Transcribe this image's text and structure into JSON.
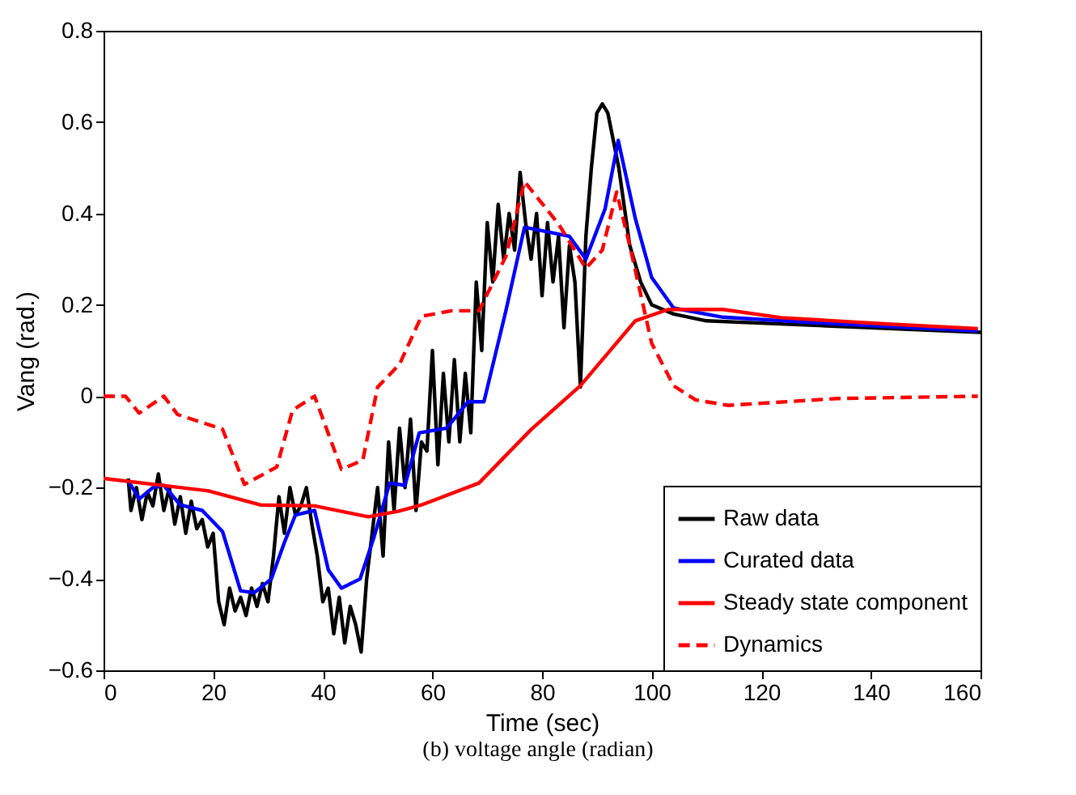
{
  "chart_data": {
    "type": "line",
    "xlabel": "Time (sec)",
    "ylabel": "Vang (rad.)",
    "xlim": [
      0,
      160
    ],
    "ylim": [
      -0.6,
      0.8
    ],
    "xticks": [
      0,
      20,
      40,
      60,
      80,
      100,
      120,
      140,
      160
    ],
    "yticks": [
      -0.6,
      -0.4,
      -0.2,
      0,
      0.2,
      0.4,
      0.6,
      0.8
    ],
    "grid": false,
    "legend": "bottom right",
    "annotations": [
      "(b) voltage angle (radian)"
    ],
    "series": [
      {
        "name": "Raw data",
        "color": "#000000",
        "line_style": "solid",
        "x": [
          4.5,
          5,
          6,
          7,
          8,
          9,
          10,
          11,
          12,
          13,
          14,
          15,
          16,
          17,
          18,
          19,
          20,
          21,
          22,
          23,
          24,
          25,
          26,
          27,
          28,
          29,
          30,
          31,
          32,
          33,
          34,
          35,
          36,
          37,
          38,
          39,
          40,
          41,
          42,
          43,
          44,
          45,
          46,
          47,
          48,
          49,
          50,
          51,
          52,
          53,
          54,
          55,
          56,
          57,
          58,
          59,
          60,
          61,
          62,
          63,
          64,
          65,
          66,
          67,
          68,
          69,
          70,
          71,
          72,
          73,
          74,
          75,
          76,
          77,
          78,
          79,
          80,
          81,
          82,
          83,
          84,
          85,
          86,
          87,
          88,
          89,
          90,
          91,
          92,
          94,
          96,
          98,
          100,
          104,
          110,
          120,
          160
        ],
        "values": [
          -0.18,
          -0.25,
          -0.2,
          -0.27,
          -0.21,
          -0.24,
          -0.17,
          -0.25,
          -0.2,
          -0.28,
          -0.22,
          -0.3,
          -0.23,
          -0.29,
          -0.27,
          -0.33,
          -0.3,
          -0.45,
          -0.5,
          -0.42,
          -0.47,
          -0.44,
          -0.48,
          -0.42,
          -0.46,
          -0.41,
          -0.45,
          -0.35,
          -0.22,
          -0.3,
          -0.2,
          -0.26,
          -0.24,
          -0.2,
          -0.28,
          -0.35,
          -0.45,
          -0.42,
          -0.52,
          -0.44,
          -0.54,
          -0.46,
          -0.5,
          -0.56,
          -0.4,
          -0.3,
          -0.2,
          -0.35,
          -0.1,
          -0.25,
          -0.07,
          -0.2,
          -0.05,
          -0.25,
          -0.1,
          -0.12,
          0.1,
          -0.15,
          0.05,
          -0.1,
          0.08,
          -0.1,
          0.05,
          -0.08,
          0.25,
          0.1,
          0.38,
          0.25,
          0.42,
          0.3,
          0.4,
          0.32,
          0.49,
          0.38,
          0.3,
          0.4,
          0.22,
          0.38,
          0.25,
          0.35,
          0.15,
          0.33,
          0.25,
          0.02,
          0.35,
          0.5,
          0.62,
          0.64,
          0.62,
          0.5,
          0.33,
          0.25,
          0.2,
          0.18,
          0.165,
          0.16,
          0.14
        ]
      },
      {
        "name": "Curated data",
        "color": "#0000ff",
        "line_style": "solid",
        "x": [
          4.5,
          6.5,
          9,
          11,
          14,
          18,
          21.7,
          25,
          27.5,
          30.6,
          33,
          35,
          38.5,
          41,
          43.4,
          46.8,
          49.3,
          52.2,
          55,
          57.6,
          62.6,
          66.5,
          69.4,
          73.4,
          76.8,
          81,
          85,
          88,
          91.5,
          93.9,
          97,
          100,
          104,
          113,
          134,
          159.5
        ],
        "values": [
          -0.185,
          -0.225,
          -0.2,
          -0.195,
          -0.238,
          -0.25,
          -0.296,
          -0.426,
          -0.43,
          -0.4,
          -0.32,
          -0.26,
          -0.25,
          -0.38,
          -0.42,
          -0.4,
          -0.31,
          -0.19,
          -0.195,
          -0.08,
          -0.07,
          -0.012,
          -0.012,
          0.187,
          0.37,
          0.36,
          0.35,
          0.3,
          0.41,
          0.56,
          0.39,
          0.26,
          0.193,
          0.173,
          0.158,
          0.143
        ]
      },
      {
        "name": "Steady state component",
        "color": "#ff0000",
        "line_style": "solid",
        "x": [
          0,
          19,
          28.6,
          38.5,
          48.3,
          53.7,
          58,
          68.5,
          78,
          87,
          97,
          103,
          113,
          123.6,
          143,
          159.5
        ],
        "values": [
          -0.18,
          -0.207,
          -0.238,
          -0.24,
          -0.264,
          -0.252,
          -0.238,
          -0.19,
          -0.073,
          0.023,
          0.165,
          0.19,
          0.19,
          0.172,
          0.158,
          0.148
        ]
      },
      {
        "name": "Dynamics",
        "color": "#ff0000",
        "line_style": "dashed",
        "x": [
          0,
          4,
          6.5,
          11,
          13.5,
          21.7,
          25.7,
          31.6,
          34.5,
          38.5,
          43.4,
          47.3,
          50,
          54,
          58,
          63.5,
          68.5,
          73.4,
          76.8,
          83,
          88,
          91,
          93.6,
          96,
          100,
          104,
          108,
          114,
          134,
          159.5
        ],
        "values": [
          0,
          0,
          -0.037,
          0,
          -0.04,
          -0.072,
          -0.193,
          -0.155,
          -0.03,
          0,
          -0.16,
          -0.14,
          0.02,
          0.07,
          0.175,
          0.187,
          0.187,
          0.306,
          0.47,
          0.377,
          0.28,
          0.32,
          0.447,
          0.33,
          0.116,
          0.023,
          -0.008,
          -0.02,
          -0.005,
          0
        ]
      }
    ]
  }
}
